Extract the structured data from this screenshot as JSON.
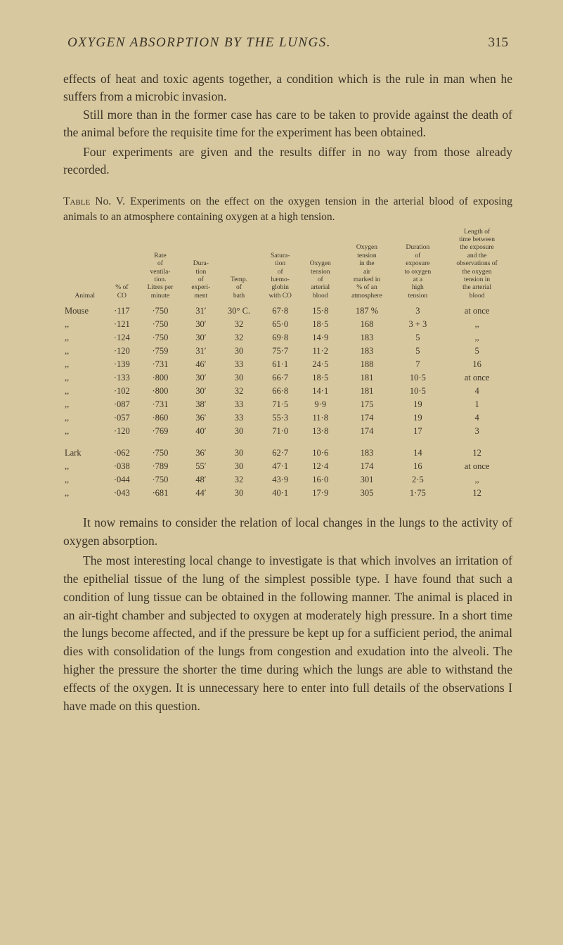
{
  "page": {
    "running_title": "OXYGEN ABSORPTION BY THE LUNGS.",
    "page_number": "315"
  },
  "intro": {
    "p1": "effects of heat and toxic agents together, a condition which is the rule in man when he suffers from a microbic invasion.",
    "p2": "Still more than in the former case has care to be taken to provide against the death of the animal before the requisite time for the experiment has been obtained.",
    "p3": "Four experiments are given and the results differ in no way from those already recorded."
  },
  "table": {
    "caption_lead": "Table",
    "caption_rest": " No. V.  Experiments on the effect on the oxygen tension in the arterial blood of exposing animals to an atmosphere containing oxygen at a high tension.",
    "headers": [
      "Animal",
      "% of\nCO",
      "Rate\nof\nventila-\ntion.\nLitres per\nminute",
      "Dura-\ntion\nof\nexperi-\nment",
      "Temp.\nof\nbath",
      "Satura-\ntion\nof\nhæmo-\nglobin\nwith CO",
      "Oxygen\ntension\nof\narterial\nblood",
      "Oxygen\ntension\nin the\nair\nmarked in\n% of an\natmosphere",
      "Duration\nof\nexposure\nto oxygen\nat a\nhigh\ntension",
      "Length of\ntime between\nthe exposure\nand the\nobservations of\nthe oxygen\ntension in\nthe arterial\nblood"
    ],
    "rows": [
      [
        "Mouse",
        "·117",
        "·750",
        "31′",
        "30° C.",
        "67·8",
        "15·8",
        "187 %",
        "3",
        "at once"
      ],
      [
        "  ,,",
        "·121",
        "·750",
        "30′",
        "32",
        "65·0",
        "18·5",
        "168",
        "3 + 3",
        ",,"
      ],
      [
        "  ,,",
        "·124",
        "·750",
        "30′",
        "32",
        "69·8",
        "14·9",
        "183",
        "5",
        ",,"
      ],
      [
        "  ,,",
        "·120",
        "·759",
        "31′",
        "30",
        "75·7",
        "11·2",
        "183",
        "5",
        "5"
      ],
      [
        "  ,,",
        "·139",
        "·731",
        "46′",
        "33",
        "61·1",
        "24·5",
        "188",
        "7",
        "16"
      ],
      [
        "  ,,",
        "·133",
        "·800",
        "30′",
        "30",
        "66·7",
        "18·5",
        "181",
        "10·5",
        "at once"
      ],
      [
        "  ,,",
        "·102",
        "·800",
        "30′",
        "32",
        "66·8",
        "14·1",
        "181",
        "10·5",
        "4"
      ],
      [
        "  ,,",
        "·087",
        "·731",
        "38′",
        "33",
        "71·5",
        "9·9",
        "175",
        "19",
        "1"
      ],
      [
        "  ,,",
        "·057",
        "·860",
        "36′",
        "33",
        "55·3",
        "11·8",
        "174",
        "19",
        "4"
      ],
      [
        "  ,,",
        "·120",
        "·769",
        "40′",
        "30",
        "71·0",
        "13·8",
        "174",
        "17",
        "3"
      ]
    ],
    "rows2": [
      [
        "Lark",
        "·062",
        "·750",
        "36′",
        "30",
        "62·7",
        "10·6",
        "183",
        "14",
        "12"
      ],
      [
        "  ,,",
        "·038",
        "·789",
        "55′",
        "30",
        "47·1",
        "12·4",
        "174",
        "16",
        "at once"
      ],
      [
        "  ,,",
        "·044",
        "·750",
        "48′",
        "32",
        "43·9",
        "16·0",
        "301",
        "2·5",
        ",,"
      ],
      [
        "  ,,",
        "·043",
        "·681",
        "44′",
        "30",
        "40·1",
        "17·9",
        "305",
        "1·75",
        "12"
      ]
    ]
  },
  "outro": {
    "p1": "It now remains to consider the relation of local changes in the lungs to the activity of oxygen absorption.",
    "p2": "The most interesting local change to investigate is that which involves an irritation of the epithelial tissue of the lung of the simplest possible type. I have found that such a condition of lung tissue can be obtained in the following manner. The animal is placed in an air-tight chamber and subjected to oxygen at moderately high pressure. In a short time the lungs become affected, and if the pressure be kept up for a sufficient period, the animal dies with consolidation of the lungs from congestion and exudation into the alveoli. The higher the pressure the shorter the time during which the lungs are able to withstand the effects of the oxygen. It is unnecessary here to enter into full details of the observations I have made on this question."
  },
  "colors": {
    "background": "#d7c89f",
    "text": "#3a3328"
  }
}
